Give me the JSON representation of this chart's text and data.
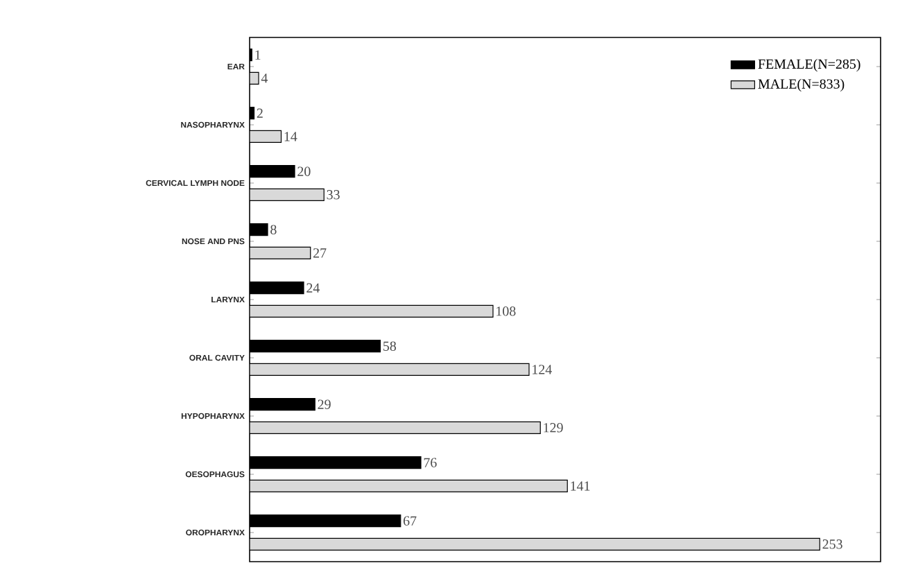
{
  "chart_data": {
    "type": "bar",
    "orientation": "horizontal",
    "categories": [
      "EAR",
      "NASOPHARYNX",
      "CERVICAL LYMPH NODE",
      "NOSE AND PNS",
      "LARYNX",
      "ORAL CAVITY",
      "HYPOPHARYNX",
      "OESOPHAGUS",
      "OROPHARYNX"
    ],
    "series": [
      {
        "name": "FEMALE(N=285)",
        "color": "#000000",
        "values": [
          1,
          2,
          20,
          8,
          24,
          58,
          29,
          76,
          67
        ]
      },
      {
        "name": "MALE(N=833)",
        "color": "#d9d9d9",
        "values": [
          4,
          14,
          33,
          27,
          108,
          124,
          129,
          141,
          253
        ]
      }
    ],
    "xlim": [
      0,
      280
    ],
    "data_labels": true,
    "legend": "top right",
    "tick_labels": "y"
  }
}
